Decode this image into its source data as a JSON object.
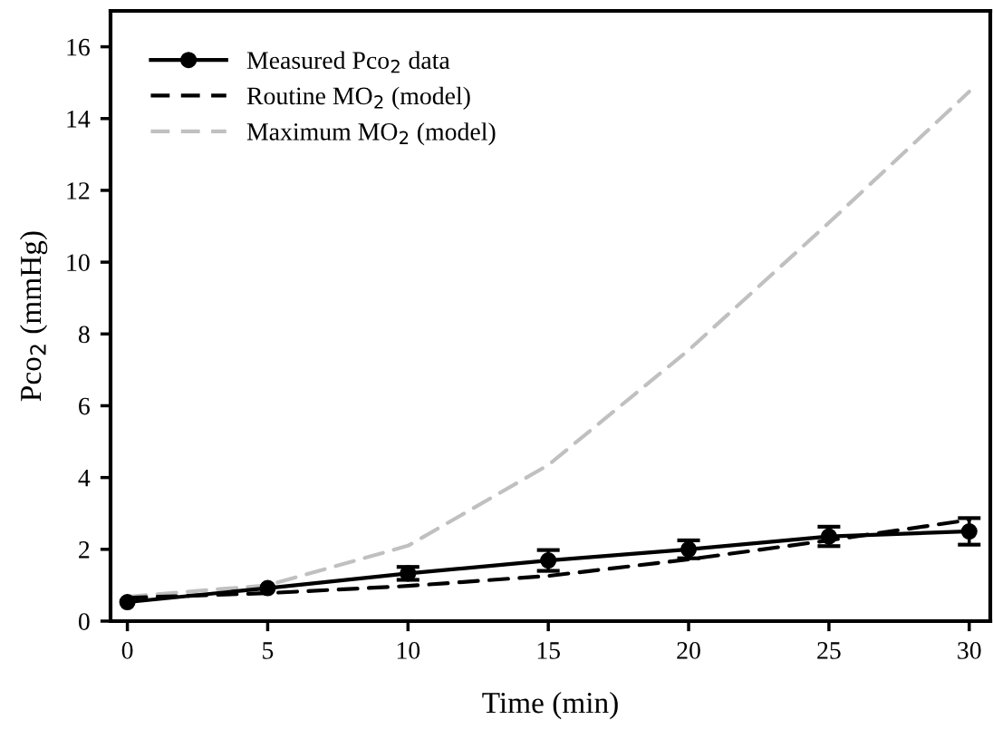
{
  "chart_data": {
    "type": "line",
    "xlabel": "Time (min)",
    "ylabel": "Pco$_{2}$ (mmHg)",
    "x": [
      0,
      5,
      10,
      15,
      20,
      25,
      30
    ],
    "series": [
      {
        "name": "Measured Pco$_{2}$ data",
        "color": "#000000",
        "marker": "circle",
        "line_style": "solid",
        "values": [
          0.53,
          0.92,
          1.33,
          1.69,
          2.0,
          2.36,
          2.5
        ],
        "errors": [
          null,
          null,
          0.18,
          0.29,
          0.25,
          0.27,
          0.37
        ]
      },
      {
        "name": "Routine MO$_{2}$ (model)",
        "color": "#000000",
        "marker": "none",
        "line_style": "dashed",
        "values": [
          0.65,
          0.78,
          0.98,
          1.26,
          1.72,
          2.25,
          2.82
        ]
      },
      {
        "name": "Maximum MO$_{2}$ (model)",
        "color": "#c0c0c0",
        "marker": "none",
        "line_style": "dashed",
        "values": [
          0.68,
          1.0,
          2.1,
          4.35,
          7.55,
          11.1,
          14.75
        ]
      }
    ],
    "xlim": [
      -0.6,
      30.75
    ],
    "ylim": [
      0,
      17
    ],
    "xticks": [
      0,
      5,
      10,
      15,
      20,
      25,
      30
    ],
    "yticks": [
      0,
      2,
      4,
      6,
      8,
      10,
      12,
      14,
      16
    ],
    "grid": false,
    "legend": "top left"
  }
}
